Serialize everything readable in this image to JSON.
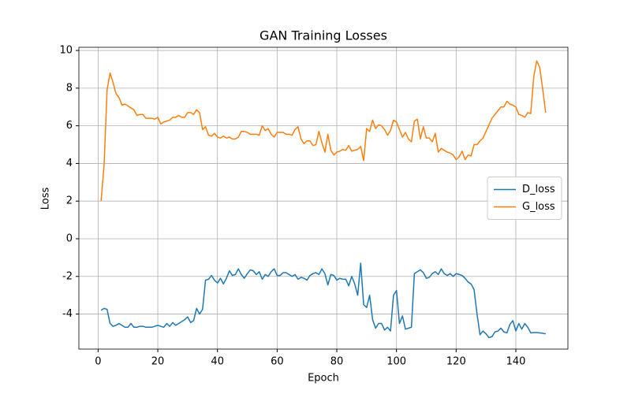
{
  "chart_data": {
    "type": "line",
    "title": "GAN Training Losses",
    "x_label": "Epoch",
    "y_label": "Loss",
    "x": [
      1,
      2,
      3,
      4,
      5,
      6,
      7,
      8,
      9,
      10,
      11,
      12,
      13,
      14,
      15,
      16,
      17,
      18,
      19,
      20,
      21,
      22,
      23,
      24,
      25,
      26,
      27,
      28,
      29,
      30,
      31,
      32,
      33,
      34,
      35,
      36,
      37,
      38,
      39,
      40,
      41,
      42,
      43,
      44,
      45,
      46,
      47,
      48,
      49,
      50,
      51,
      52,
      53,
      54,
      55,
      56,
      57,
      58,
      59,
      60,
      61,
      62,
      63,
      64,
      65,
      66,
      67,
      68,
      69,
      70,
      71,
      72,
      73,
      74,
      75,
      76,
      77,
      78,
      79,
      80,
      81,
      82,
      83,
      84,
      85,
      86,
      87,
      88,
      89,
      90,
      91,
      92,
      93,
      94,
      95,
      96,
      97,
      98,
      99,
      100,
      101,
      102,
      103,
      104,
      105,
      106,
      107,
      108,
      109,
      110,
      111,
      112,
      113,
      114,
      115,
      116,
      117,
      118,
      119,
      120,
      121,
      122,
      123,
      124,
      125,
      126,
      127,
      128,
      129,
      130,
      131,
      132,
      133,
      134,
      135,
      136,
      137,
      138,
      139,
      140,
      141,
      142,
      143,
      144,
      145,
      146,
      147,
      148,
      149,
      150
    ],
    "series": [
      {
        "name": "D_loss",
        "color": "#1f77b4",
        "values": [
          -3.8,
          -3.7,
          -3.75,
          -4.5,
          -4.65,
          -4.6,
          -4.5,
          -4.6,
          -4.7,
          -4.7,
          -4.5,
          -4.7,
          -4.7,
          -4.65,
          -4.65,
          -4.7,
          -4.7,
          -4.7,
          -4.65,
          -4.6,
          -4.65,
          -4.7,
          -4.5,
          -4.65,
          -4.45,
          -4.6,
          -4.5,
          -4.4,
          -4.3,
          -4.15,
          -4.45,
          -4.35,
          -3.7,
          -4.0,
          -3.75,
          -2.2,
          -2.15,
          -1.95,
          -2.2,
          -2.35,
          -2.1,
          -2.4,
          -2.1,
          -1.7,
          -1.95,
          -1.9,
          -1.6,
          -1.9,
          -2.1,
          -1.85,
          -1.65,
          -1.7,
          -1.9,
          -1.75,
          -2.15,
          -1.9,
          -2.0,
          -1.75,
          -1.6,
          -1.95,
          -1.95,
          -1.8,
          -1.8,
          -1.9,
          -2.0,
          -1.9,
          -2.15,
          -2.05,
          -2.1,
          -2.2,
          -1.95,
          -1.85,
          -1.8,
          -1.9,
          -1.6,
          -1.85,
          -2.45,
          -1.9,
          -1.95,
          -2.2,
          -2.1,
          -2.15,
          -2.15,
          -2.5,
          -2.0,
          -2.4,
          -3.0,
          -1.3,
          -3.5,
          -3.65,
          -3.0,
          -4.3,
          -4.75,
          -4.5,
          -4.5,
          -4.85,
          -4.7,
          -4.9,
          -3.0,
          -2.75,
          -4.5,
          -4.1,
          -4.8,
          -4.75,
          -4.7,
          -1.85,
          -1.75,
          -1.65,
          -1.8,
          -2.1,
          -2.05,
          -1.85,
          -1.75,
          -1.9,
          -1.6,
          -1.85,
          -1.95,
          -1.85,
          -2.0,
          -1.85,
          -1.9,
          -1.95,
          -2.1,
          -2.3,
          -2.4,
          -2.7,
          -4.0,
          -5.1,
          -4.9,
          -5.05,
          -5.25,
          -5.2,
          -4.95,
          -4.9,
          -4.75,
          -4.95,
          -5.0,
          -4.55,
          -4.35,
          -4.9,
          -4.5,
          -4.8,
          -4.5,
          -4.7,
          -5.0,
          -4.98,
          -4.98,
          -5.0,
          -5.02,
          -5.05
        ]
      },
      {
        "name": "G_loss",
        "color": "#ff7f0e",
        "values": [
          2.0,
          3.9,
          7.9,
          8.8,
          8.3,
          7.7,
          7.5,
          7.1,
          7.15,
          7.05,
          6.95,
          6.85,
          6.55,
          6.6,
          6.6,
          6.4,
          6.4,
          6.4,
          6.35,
          6.45,
          6.1,
          6.2,
          6.25,
          6.3,
          6.45,
          6.45,
          6.55,
          6.45,
          6.45,
          6.7,
          6.7,
          6.6,
          6.85,
          6.7,
          5.8,
          5.95,
          5.5,
          5.45,
          5.6,
          5.4,
          5.35,
          5.45,
          5.35,
          5.4,
          5.3,
          5.3,
          5.4,
          5.7,
          5.7,
          5.65,
          5.55,
          5.55,
          5.55,
          5.5,
          6.0,
          5.75,
          5.85,
          5.55,
          5.4,
          5.65,
          5.65,
          5.65,
          5.55,
          5.55,
          5.5,
          5.8,
          5.95,
          5.3,
          5.05,
          5.2,
          5.2,
          4.95,
          5.0,
          5.7,
          5.1,
          4.6,
          5.55,
          4.7,
          4.45,
          4.6,
          4.65,
          4.75,
          4.7,
          4.95,
          4.65,
          4.7,
          4.75,
          4.9,
          4.15,
          5.85,
          5.7,
          6.3,
          5.85,
          6.05,
          6.0,
          5.8,
          5.5,
          5.75,
          6.3,
          6.2,
          5.8,
          5.4,
          5.65,
          5.3,
          5.15,
          6.25,
          6.35,
          5.3,
          5.95,
          5.35,
          5.35,
          5.15,
          5.6,
          4.6,
          4.8,
          4.7,
          4.6,
          4.55,
          4.45,
          4.2,
          4.35,
          4.65,
          4.2,
          4.45,
          4.4,
          5.0,
          5.0,
          5.2,
          5.35,
          5.7,
          6.05,
          6.4,
          6.6,
          6.8,
          7.0,
          7.0,
          7.3,
          7.15,
          7.1,
          7.0,
          6.6,
          6.55,
          6.45,
          6.7,
          6.65,
          8.6,
          9.45,
          9.1,
          7.95,
          6.7
        ]
      }
    ],
    "xlim": [
      -6.45,
      157.45
    ],
    "xticks": [
      0,
      20,
      40,
      60,
      80,
      100,
      120,
      140
    ],
    "ylim": [
      -5.86,
      10.17
    ],
    "yticks": [
      -4,
      -2,
      0,
      2,
      4,
      6,
      8,
      10
    ],
    "grid": true,
    "legend": "center right"
  }
}
